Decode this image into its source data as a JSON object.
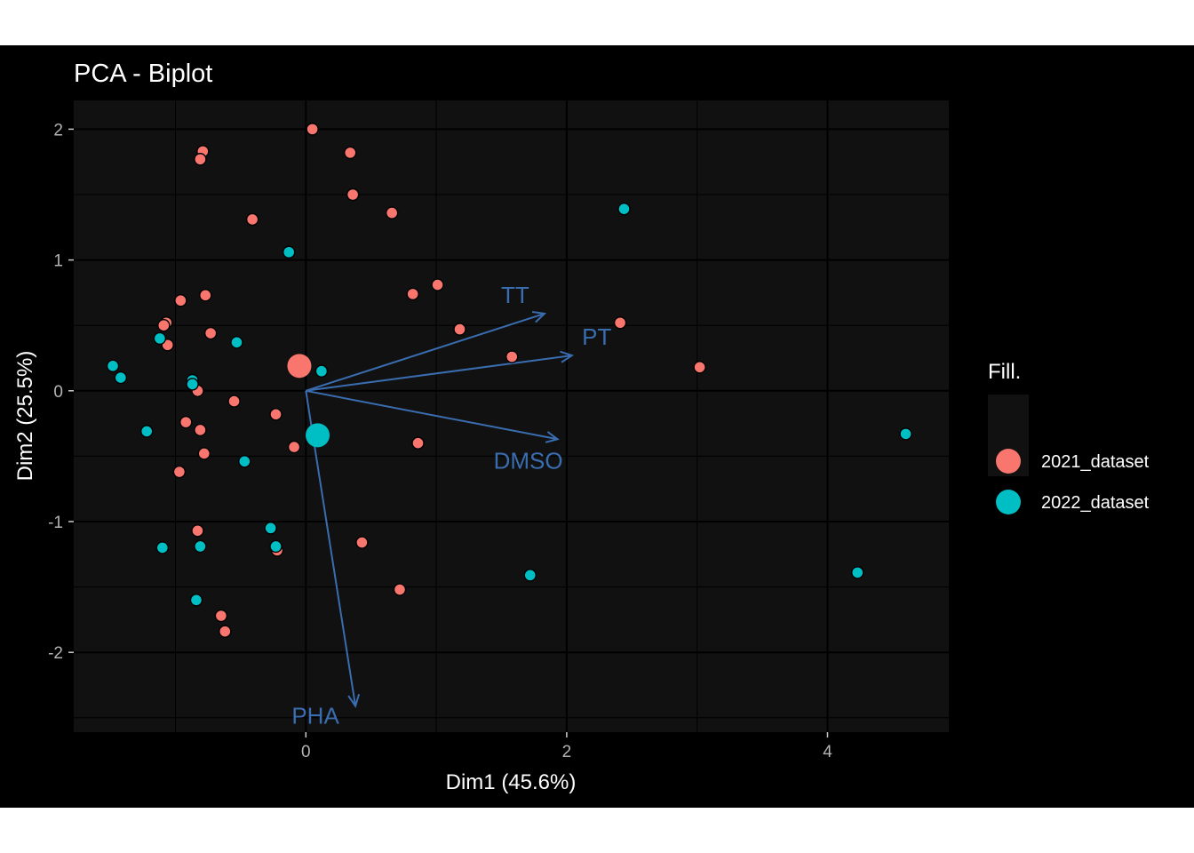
{
  "chart_data": {
    "type": "scatter",
    "title": "PCA - Biplot",
    "xlabel": "Dim1 (45.6%)",
    "ylabel": "Dim2 (25.5%)",
    "xlim": [
      -1.78,
      4.93
    ],
    "ylim": [
      -2.61,
      2.22
    ],
    "x_ticks": [
      0,
      2,
      4
    ],
    "x_tick_labels": [
      "0",
      "2",
      "4"
    ],
    "y_ticks": [
      2,
      1,
      0,
      -1,
      -2
    ],
    "y_tick_labels": [
      "2",
      "1",
      "0",
      "-1",
      "-2"
    ],
    "grid": true,
    "background": "#111111",
    "legend": {
      "title": "Fill.",
      "placement": "right",
      "entries": [
        "2021_dataset",
        "2022_dataset"
      ]
    },
    "series": [
      {
        "name": "2021_dataset",
        "color": "#F8766D",
        "points": [
          [
            0.05,
            2.0
          ],
          [
            0.34,
            1.82
          ],
          [
            -0.79,
            1.83
          ],
          [
            -0.81,
            1.77
          ],
          [
            0.36,
            1.5
          ],
          [
            0.66,
            1.36
          ],
          [
            -0.41,
            1.31
          ],
          [
            1.01,
            0.81
          ],
          [
            0.82,
            0.74
          ],
          [
            -0.96,
            0.69
          ],
          [
            -0.77,
            0.73
          ],
          [
            2.41,
            0.52
          ],
          [
            -1.07,
            0.52
          ],
          [
            -1.09,
            0.5
          ],
          [
            1.18,
            0.47
          ],
          [
            -0.73,
            0.44
          ],
          [
            -1.06,
            0.35
          ],
          [
            1.58,
            0.26
          ],
          [
            3.02,
            0.18
          ],
          [
            -0.83,
            0.0
          ],
          [
            -0.55,
            -0.08
          ],
          [
            -0.23,
            -0.18
          ],
          [
            -0.92,
            -0.24
          ],
          [
            -0.81,
            -0.3
          ],
          [
            0.86,
            -0.4
          ],
          [
            -0.09,
            -0.43
          ],
          [
            -0.78,
            -0.48
          ],
          [
            -0.97,
            -0.62
          ],
          [
            -0.83,
            -1.07
          ],
          [
            0.43,
            -1.16
          ],
          [
            -0.22,
            -1.22
          ],
          [
            0.72,
            -1.52
          ],
          [
            -0.65,
            -1.72
          ],
          [
            -0.62,
            -1.84
          ]
        ]
      },
      {
        "name": "2022_dataset",
        "color": "#00BFC4",
        "points": [
          [
            2.44,
            1.39
          ],
          [
            -0.13,
            1.06
          ],
          [
            -1.12,
            0.4
          ],
          [
            -0.53,
            0.37
          ],
          [
            -1.48,
            0.19
          ],
          [
            0.12,
            0.15
          ],
          [
            -1.42,
            0.1
          ],
          [
            -0.87,
            0.08
          ],
          [
            -0.87,
            0.05
          ],
          [
            -1.22,
            -0.31
          ],
          [
            -0.47,
            -0.54
          ],
          [
            4.6,
            -0.33
          ],
          [
            -0.27,
            -1.05
          ],
          [
            -0.81,
            -1.19
          ],
          [
            -0.23,
            -1.19
          ],
          [
            -1.1,
            -1.2
          ],
          [
            1.72,
            -1.41
          ],
          [
            4.23,
            -1.39
          ],
          [
            -0.84,
            -1.6
          ]
        ]
      }
    ],
    "centroids": [
      {
        "name": "2021_dataset",
        "x": -0.05,
        "y": 0.19
      },
      {
        "name": "2022_dataset",
        "x": 0.09,
        "y": -0.34
      }
    ],
    "arrows": {
      "color": "#3A6DB0",
      "items": [
        {
          "label": "TT",
          "x": 1.83,
          "y": 0.59
        },
        {
          "label": "PT",
          "x": 2.04,
          "y": 0.27
        },
        {
          "label": "DMSO",
          "x": 1.93,
          "y": -0.37
        },
        {
          "label": "PHA",
          "x": 0.38,
          "y": -2.41
        }
      ]
    }
  }
}
